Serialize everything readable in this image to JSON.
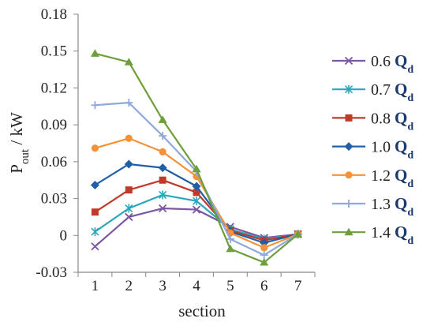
{
  "chart_data": {
    "type": "line",
    "categories": [
      "1",
      "2",
      "3",
      "4",
      "5",
      "6",
      "7"
    ],
    "xlabel": "section",
    "ylabel": "P",
    "ylabel_sub": "out",
    "ylabel_unit": " / kW",
    "ylim": [
      -0.03,
      0.18
    ],
    "yticks": [
      "-0.03",
      "0",
      "0.03",
      "0.06",
      "0.09",
      "0.12",
      "0.15",
      "0.18"
    ],
    "grid": false,
    "legend_position": "right",
    "legend_q": "Q",
    "legend_q_sub": "d",
    "series": [
      {
        "name": "0.6",
        "marker": "x",
        "color": "#7b57a3",
        "values": [
          -0.009,
          0.015,
          0.022,
          0.021,
          0.007,
          -0.002,
          0.001
        ]
      },
      {
        "name": "0.7",
        "marker": "star",
        "color": "#2aa8b9",
        "values": [
          0.003,
          0.022,
          0.033,
          0.028,
          0.005,
          -0.003,
          0.001
        ]
      },
      {
        "name": "0.8",
        "marker": "square",
        "color": "#c0392b",
        "values": [
          0.019,
          0.037,
          0.045,
          0.035,
          0.004,
          -0.004,
          0.001
        ]
      },
      {
        "name": "1.0",
        "marker": "diamond",
        "color": "#1f5fa8",
        "values": [
          0.041,
          0.058,
          0.055,
          0.04,
          0.003,
          -0.006,
          0.001
        ]
      },
      {
        "name": "1.2",
        "marker": "circle",
        "color": "#f39237",
        "values": [
          0.071,
          0.079,
          0.068,
          0.048,
          0.002,
          -0.01,
          0.001
        ]
      },
      {
        "name": "1.3",
        "marker": "plus",
        "color": "#8fa9d8",
        "values": [
          0.106,
          0.108,
          0.081,
          0.052,
          -0.003,
          -0.016,
          0.001
        ]
      },
      {
        "name": "1.4",
        "marker": "triangle",
        "color": "#6f9e3c",
        "values": [
          0.148,
          0.141,
          0.094,
          0.054,
          -0.011,
          -0.022,
          0.001
        ]
      }
    ]
  }
}
